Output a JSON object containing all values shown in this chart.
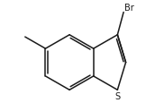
{
  "bg_color": "#ffffff",
  "line_color": "#1a1a1a",
  "line_width": 1.1,
  "font_size_br": 7.0,
  "font_size_s": 7.0,
  "figsize": [
    1.72,
    1.16
  ],
  "dpi": 100,
  "br_label": "Br",
  "s_label": "S"
}
